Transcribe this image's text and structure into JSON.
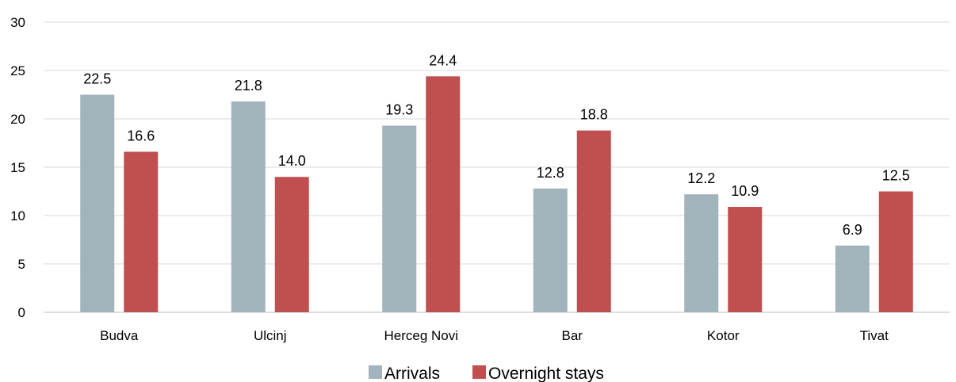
{
  "chart_data": {
    "type": "bar",
    "title": "",
    "xlabel": "",
    "ylabel": "",
    "categories": [
      "Budva",
      "Ulcinj",
      "Herceg Novi",
      "Bar",
      "Kotor",
      "Tivat"
    ],
    "series": [
      {
        "name": "Arrivals",
        "color": "#a2b4bb",
        "values": [
          22.5,
          21.8,
          19.3,
          12.8,
          12.2,
          6.9
        ],
        "labels": [
          "22.5",
          "21.8",
          "19.3",
          "12.8",
          "12.2",
          "6.9"
        ]
      },
      {
        "name": "Overnight stays",
        "color": "#c0504f",
        "values": [
          16.6,
          14.0,
          24.4,
          18.8,
          10.9,
          12.5
        ],
        "labels": [
          "16.6",
          "14.0",
          "24.4",
          "18.8",
          "10.9",
          "12.5"
        ]
      }
    ],
    "ylim": [
      0,
      30
    ],
    "yticks": [
      "0",
      "5",
      "10",
      "15",
      "20",
      "25",
      "30"
    ],
    "grid": true,
    "legend": "bottom-center"
  }
}
